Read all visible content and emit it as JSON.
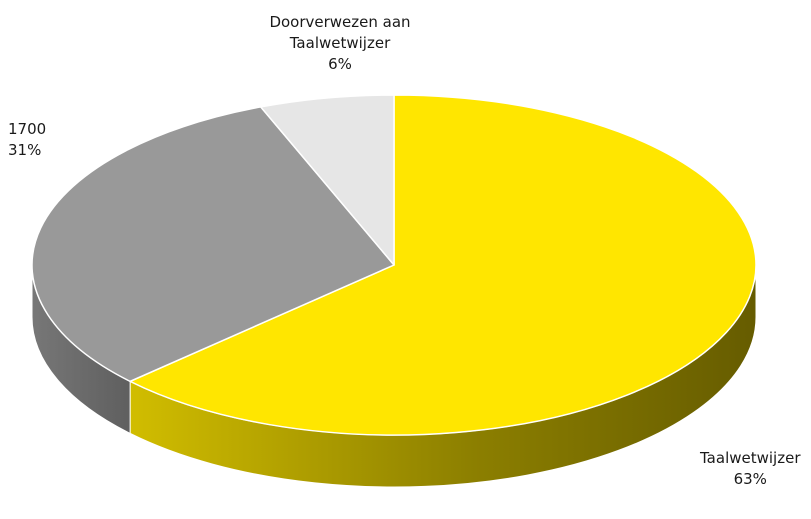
{
  "chart_data": {
    "type": "pie",
    "style": "3d",
    "title": "",
    "start_angle_deg": 0,
    "direction": "clockwise",
    "slices": [
      {
        "label": "Taalwetwijzer",
        "value": 63,
        "percent_label": "63%",
        "color": "#FFE600"
      },
      {
        "label": "1700",
        "value": 31,
        "percent_label": "31%",
        "color": "#999999"
      },
      {
        "label": "Doorverwezen aan Taalwetwijzer",
        "value": 6,
        "percent_label": "6%",
        "color": "#E6E6E6"
      }
    ],
    "legend": "none",
    "data_labels": "category-and-percent"
  }
}
